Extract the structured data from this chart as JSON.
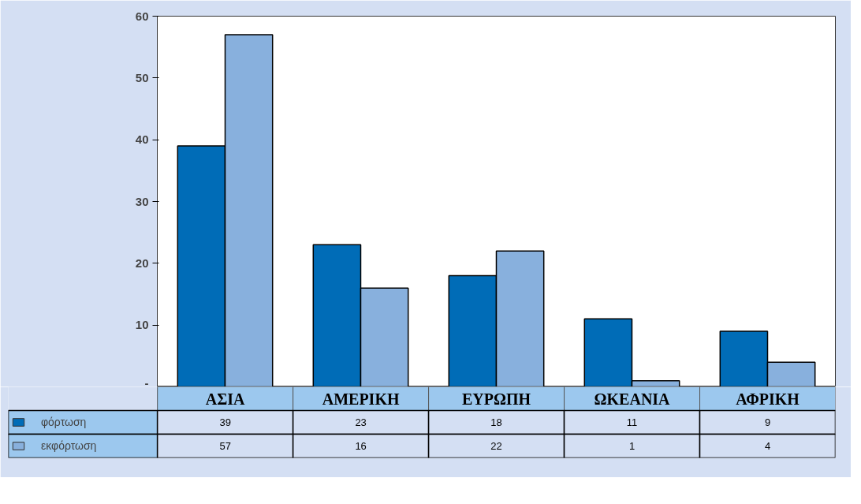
{
  "chart_data": {
    "type": "bar",
    "categories": [
      "ΑΣΙΑ",
      "ΑΜΕΡΙΚΗ",
      "ΕΥΡΩΠΗ",
      "ΩΚΕΑΝΙΑ",
      "ΑΦΡΙΚΗ"
    ],
    "series": [
      {
        "name": "φόρτωση",
        "color": "#006cb7",
        "values": [
          39,
          23,
          18,
          11,
          9
        ]
      },
      {
        "name": "εκφόρτωση",
        "color": "#88b0dd",
        "values": [
          57,
          16,
          22,
          1,
          4
        ]
      }
    ],
    "ylim": [
      0,
      60
    ],
    "yticks": [
      {
        "value": 0,
        "label": "-"
      },
      10,
      20,
      30,
      40,
      50,
      60
    ],
    "legend": "bottom left",
    "data_labels": true
  }
}
